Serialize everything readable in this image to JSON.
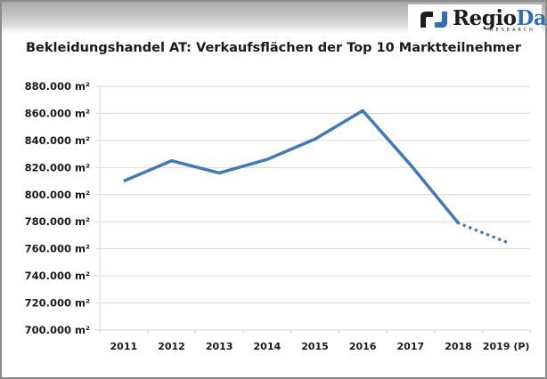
{
  "header": {
    "logo": {
      "icon": "regiodata-logo-mark",
      "name_part1": "Regio",
      "name_part2": "Data",
      "subtitle": "RESEARCH"
    }
  },
  "colors": {
    "line": "#3f78bb",
    "grid": "#d9d9d9",
    "frame": "#8c8c8c",
    "logo_blue": "#2f6fb5"
  },
  "chart_data": {
    "type": "line",
    "title": "Bekleidungshandel AT: Verkaufsflächen der Top 10 Marktteilnehmer",
    "xlabel": "",
    "ylabel": "",
    "categories": [
      "2011",
      "2012",
      "2013",
      "2014",
      "2015",
      "2016",
      "2017",
      "2018",
      "2019 (P)"
    ],
    "series": [
      {
        "name": "Verkaufsflächen",
        "values": [
          810000,
          825000,
          816000,
          826000,
          841000,
          862000,
          822000,
          779000,
          765000
        ],
        "forecast_from_index": 7
      }
    ],
    "ylim": [
      700000,
      880000
    ],
    "yticks": [
      700000,
      720000,
      740000,
      760000,
      780000,
      800000,
      820000,
      840000,
      860000,
      880000
    ],
    "ytick_labels": [
      "700.000 m²",
      "720.000 m²",
      "740.000 m²",
      "760.000 m²",
      "780.000 m²",
      "800.000 m²",
      "820.000 m²",
      "840.000 m²",
      "860.000 m²",
      "880.000 m²"
    ],
    "grid": true,
    "legend": "none"
  }
}
